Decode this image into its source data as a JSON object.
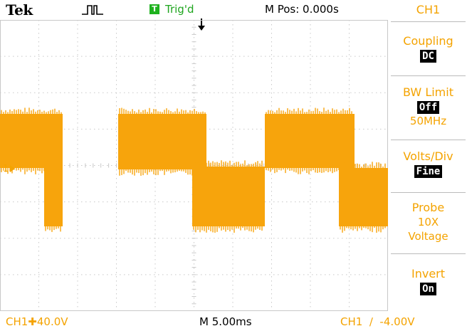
{
  "header": {
    "brand": "Tek",
    "trigger_badge": "T",
    "trigger_status": "Trig'd",
    "position_readout": "M Pos: 0.000s"
  },
  "screen": {
    "channel_marker": "1",
    "waveform_color": "#f7a40c",
    "grid_color": "#c8c8c8"
  },
  "menu": {
    "title": "CH1",
    "coupling": {
      "label": "Coupling",
      "value": "DC"
    },
    "bw_limit": {
      "label": "BW Limit",
      "value": "Off",
      "sub": "50MHz"
    },
    "volts_div": {
      "label": "Volts/Div",
      "value": "Fine"
    },
    "probe": {
      "label": "Probe",
      "line1": "10X",
      "line2": "Voltage"
    },
    "invert": {
      "label": "Invert",
      "value": "On"
    }
  },
  "footer": {
    "ch1_scale": "CH1✚40.0V",
    "timebase": "M 5.00ms",
    "trigger_info": "CH1  ∕  -4.00V"
  }
}
